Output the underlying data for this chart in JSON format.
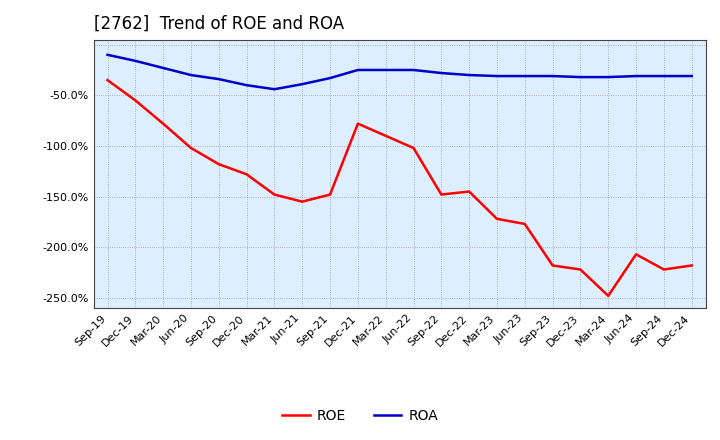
{
  "title": "[2762]  Trend of ROE and ROA",
  "labels": [
    "Sep-19",
    "Dec-19",
    "Mar-20",
    "Jun-20",
    "Sep-20",
    "Dec-20",
    "Mar-21",
    "Jun-21",
    "Sep-21",
    "Dec-21",
    "Mar-22",
    "Jun-22",
    "Sep-22",
    "Dec-22",
    "Mar-23",
    "Jun-23",
    "Sep-23",
    "Dec-23",
    "Mar-24",
    "Jun-24",
    "Sep-24",
    "Dec-24"
  ],
  "ROE": [
    -35,
    -55,
    -78,
    -102,
    -118,
    -128,
    -148,
    -155,
    -148,
    -78,
    -90,
    -102,
    -148,
    -145,
    -172,
    -177,
    -218,
    -222,
    -248,
    -207,
    -222,
    -218
  ],
  "ROA": [
    -10,
    -16,
    -23,
    -30,
    -34,
    -40,
    -44,
    -39,
    -33,
    -25,
    -25,
    -25,
    -28,
    -30,
    -31,
    -31,
    -31,
    -32,
    -32,
    -31,
    -31,
    -31
  ],
  "roe_color": "#ff0000",
  "roa_color": "#0000cc",
  "background_color": "#ffffff",
  "plot_bg_color": "#ddeeff",
  "ylim_min": -260,
  "ylim_max": 5,
  "ytick_vals": [
    0,
    -50,
    -100,
    -150,
    -200,
    -250
  ],
  "title_fontsize": 12,
  "legend_fontsize": 10,
  "axis_tick_fontsize": 8,
  "line_width": 1.8,
  "grid_color": "#9999bb",
  "grid_linestyle": ":",
  "grid_linewidth": 0.6
}
